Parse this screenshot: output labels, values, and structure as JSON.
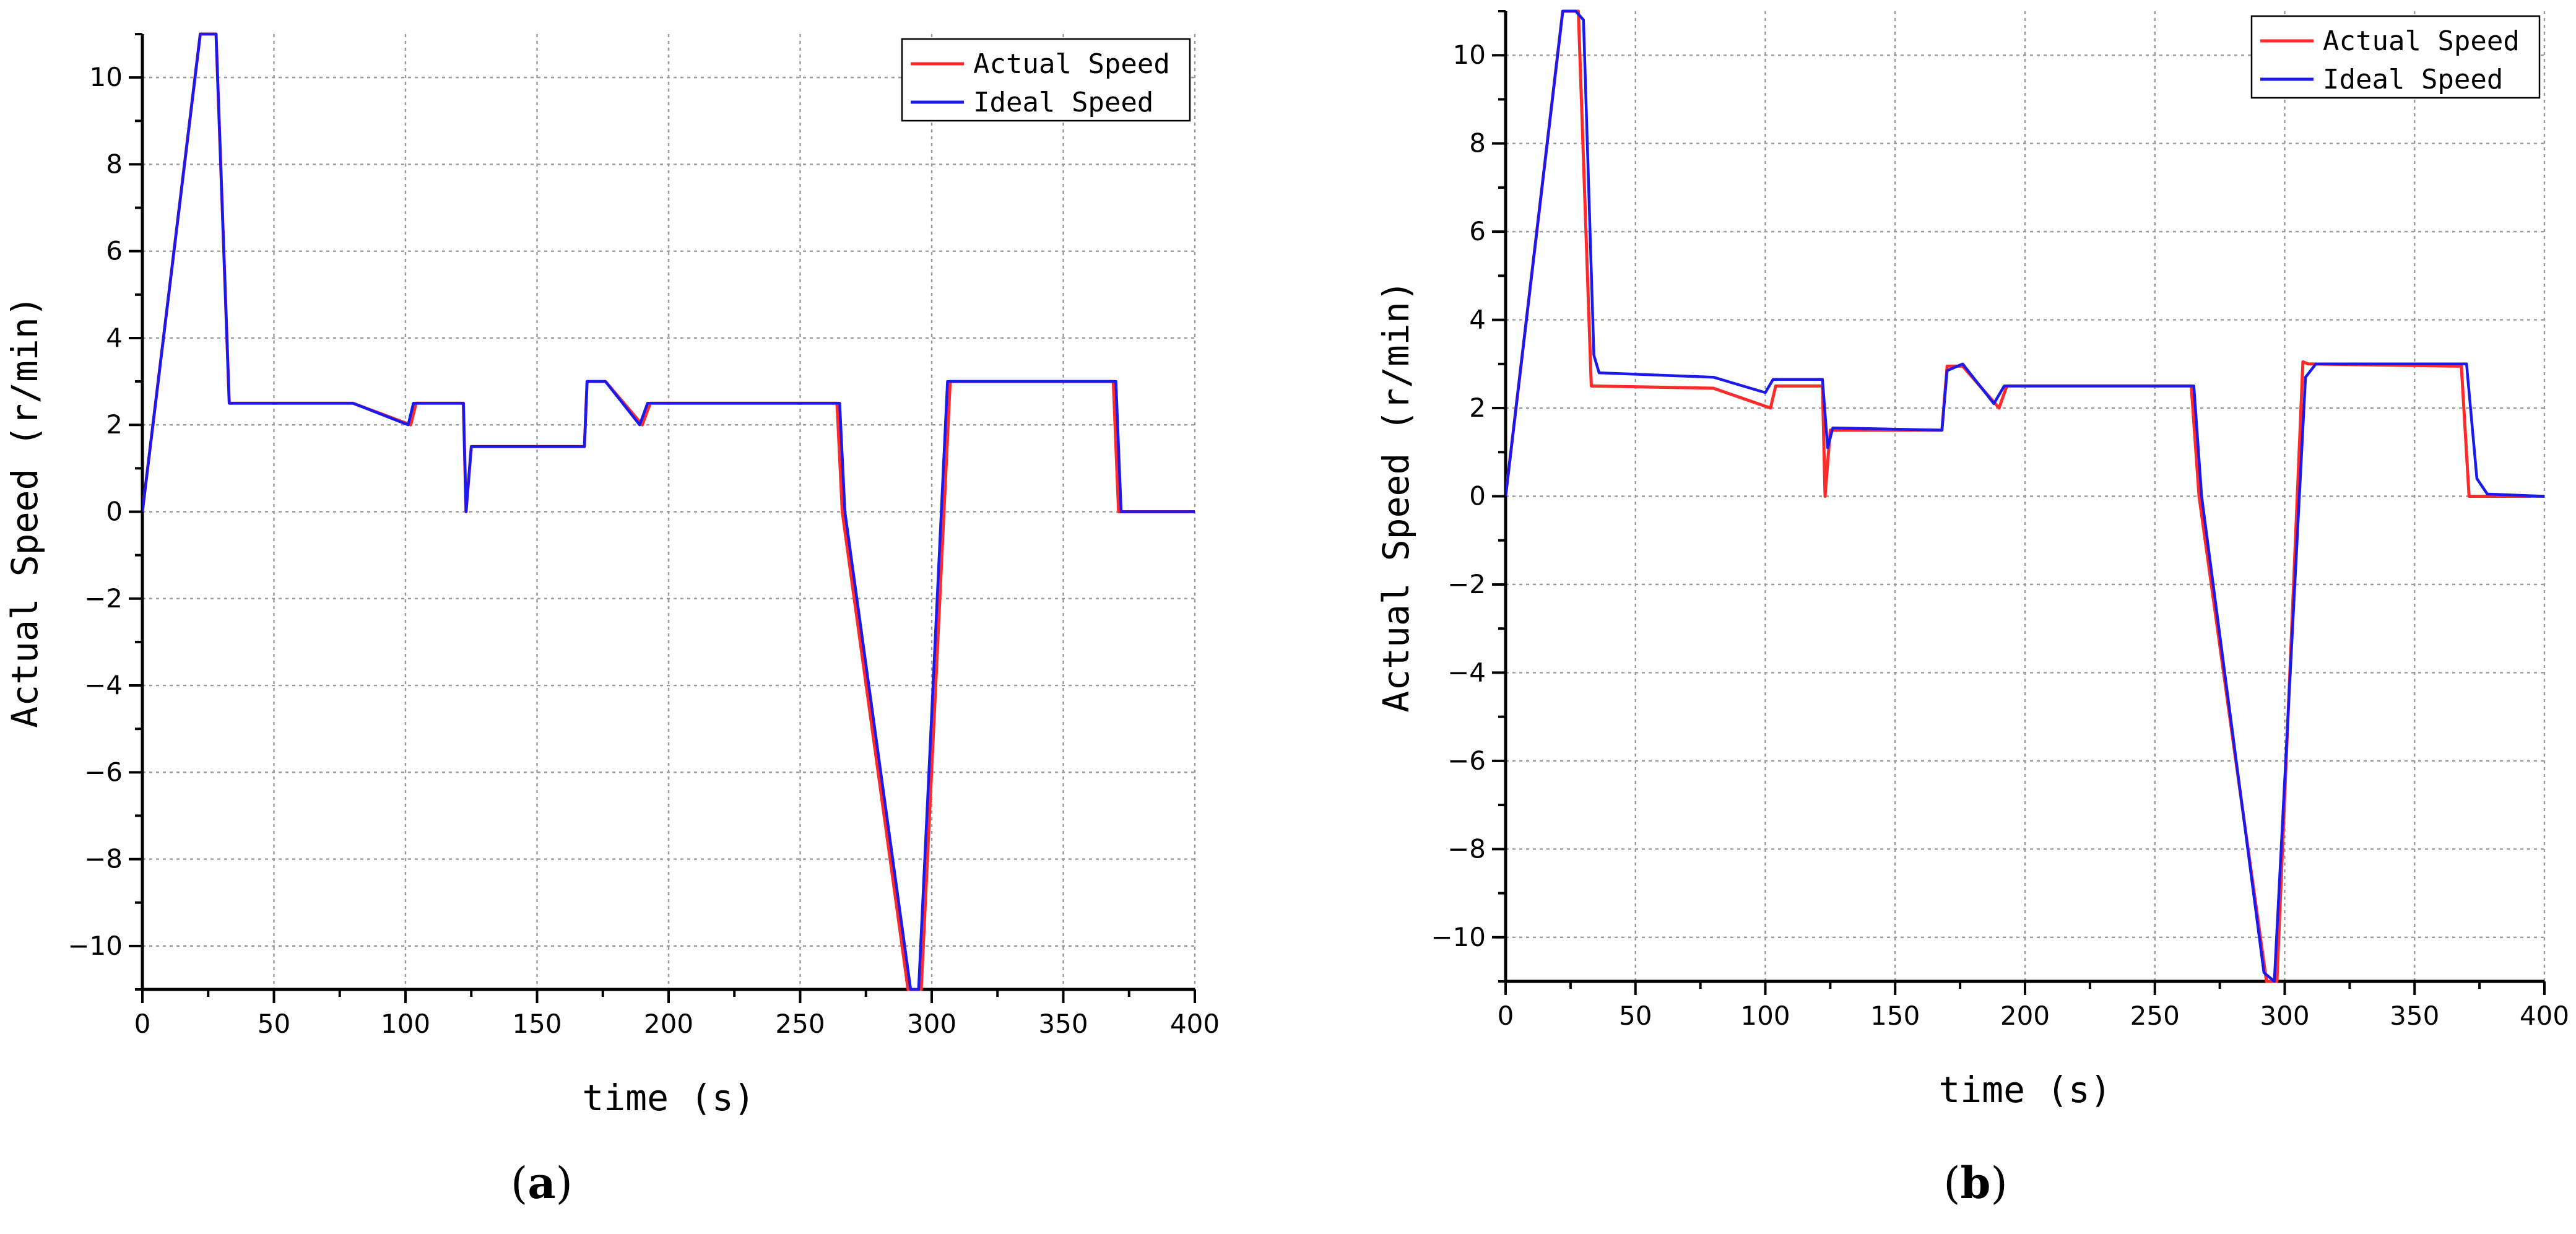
{
  "chart_data": [
    {
      "type": "line",
      "panel_label": "a",
      "xlabel": "time (s)",
      "ylabel": "Actual Speed (r/min)",
      "xlim": [
        0,
        400
      ],
      "ylim": [
        -11,
        11
      ],
      "xticks": [
        0,
        50,
        100,
        150,
        200,
        250,
        300,
        350,
        400
      ],
      "yticks": [
        -10,
        -8,
        -6,
        -4,
        -2,
        0,
        2,
        4,
        6,
        8,
        10
      ],
      "grid": true,
      "legend_position": "top-right",
      "series": [
        {
          "name": "Actual Speed",
          "color": "#ff2a2a",
          "x": [
            0,
            22,
            25,
            28,
            33,
            80,
            102,
            104,
            122,
            123,
            125,
            168,
            169,
            176,
            190,
            193,
            264,
            266,
            291,
            296,
            307,
            309,
            369,
            371,
            400
          ],
          "y": [
            0,
            11,
            11,
            11,
            2.5,
            2.5,
            2.0,
            2.5,
            2.5,
            0.0,
            1.5,
            1.5,
            3.0,
            3.0,
            2.0,
            2.5,
            2.5,
            0.0,
            -11,
            -11,
            3.0,
            3.0,
            3.0,
            0.0,
            0.0
          ]
        },
        {
          "name": "Ideal Speed",
          "color": "#1a1aee",
          "x": [
            0,
            22,
            25,
            28,
            33,
            80,
            101,
            103,
            122,
            123,
            125,
            168,
            169,
            176,
            189,
            192,
            265,
            267,
            292,
            295,
            306,
            308,
            370,
            372,
            400
          ],
          "y": [
            0,
            11,
            11,
            11,
            2.5,
            2.5,
            2.0,
            2.5,
            2.5,
            0.0,
            1.5,
            1.5,
            3.0,
            3.0,
            2.0,
            2.5,
            2.5,
            0.0,
            -11,
            -11,
            3.0,
            3.0,
            3.0,
            0.0,
            0.0
          ]
        }
      ]
    },
    {
      "type": "line",
      "panel_label": "b",
      "xlabel": "time (s)",
      "ylabel": "Actual Speed (r/min)",
      "xlim": [
        0,
        400
      ],
      "ylim": [
        -11,
        11
      ],
      "xticks": [
        0,
        50,
        100,
        150,
        200,
        250,
        300,
        350,
        400
      ],
      "yticks": [
        -10,
        -8,
        -6,
        -4,
        -2,
        0,
        2,
        4,
        6,
        8,
        10
      ],
      "grid": true,
      "legend_position": "top-right",
      "series": [
        {
          "name": "Actual Speed",
          "color": "#ff2a2a",
          "x": [
            0,
            22,
            25,
            28,
            33,
            80,
            102,
            104,
            122,
            123,
            125,
            168,
            170,
            176,
            190,
            193,
            264,
            267,
            293,
            297,
            307,
            309,
            368,
            371,
            400
          ],
          "y": [
            0,
            11,
            11,
            11,
            2.5,
            2.45,
            2.0,
            2.5,
            2.5,
            0.0,
            1.5,
            1.5,
            2.95,
            2.95,
            2.0,
            2.5,
            2.5,
            0.0,
            -11,
            -11,
            3.05,
            3.0,
            2.95,
            0.0,
            0.0
          ]
        },
        {
          "name": "Ideal Speed",
          "color": "#1a1aee",
          "x": [
            0,
            22,
            27,
            30,
            34,
            36,
            80,
            100,
            103,
            122,
            124,
            126,
            168,
            170,
            176,
            188,
            192,
            265,
            268,
            292,
            296,
            308,
            312,
            370,
            374,
            378,
            400
          ],
          "y": [
            0,
            11,
            11,
            10.8,
            3.2,
            2.8,
            2.7,
            2.35,
            2.65,
            2.65,
            1.1,
            1.55,
            1.5,
            2.85,
            3.0,
            2.1,
            2.5,
            2.5,
            0.0,
            -10.8,
            -11,
            2.7,
            3.0,
            3.0,
            0.4,
            0.05,
            0.0
          ]
        }
      ]
    }
  ]
}
